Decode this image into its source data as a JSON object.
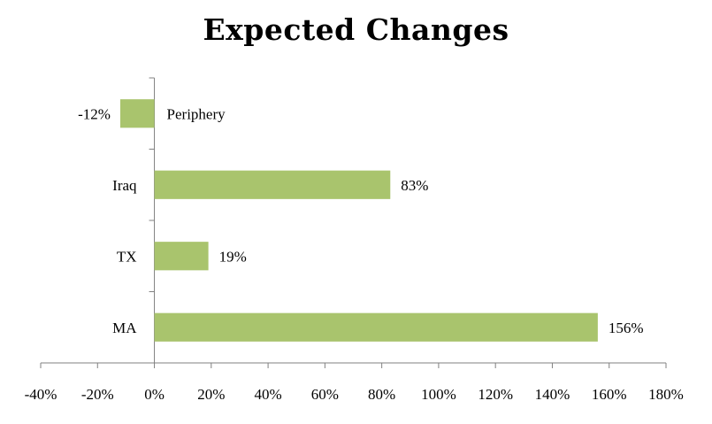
{
  "chart_data": {
    "type": "bar",
    "orientation": "horizontal",
    "title": "Expected Changes",
    "xlabel": "",
    "ylabel": "",
    "categories": [
      "Periphery",
      "Iraq",
      "TX",
      "MA"
    ],
    "values": [
      -12,
      83,
      19,
      156
    ],
    "value_labels": [
      "-12%",
      "83%",
      "19%",
      "156%"
    ],
    "xlim": [
      -40,
      180
    ],
    "x_ticks": [
      -40,
      -20,
      0,
      20,
      40,
      60,
      80,
      100,
      120,
      140,
      160,
      180
    ],
    "x_tick_labels": [
      "-40%",
      "-20%",
      "0%",
      "20%",
      "40%",
      "60%",
      "80%",
      "100%",
      "120%",
      "140%",
      "160%",
      "180%"
    ],
    "grid": false,
    "legend": "none",
    "bar_color": "#a9c46d",
    "axis_color": "#808080"
  }
}
